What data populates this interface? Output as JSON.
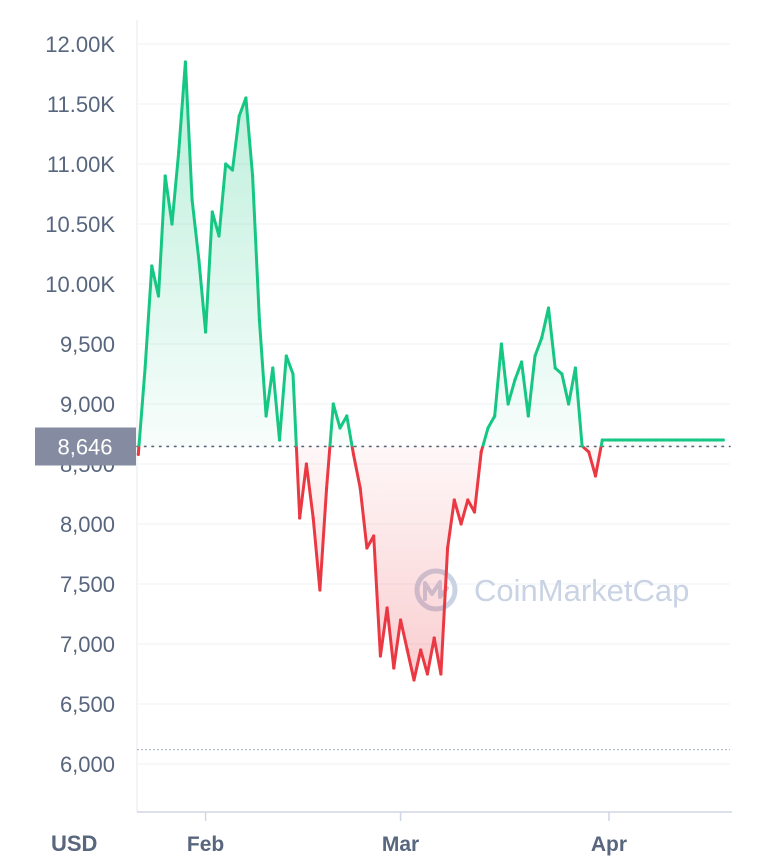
{
  "chart_data": {
    "type": "line",
    "unit_label": "USD",
    "watermark": "CoinMarketCap",
    "reference_price": 8646,
    "reference_label": "8,646",
    "low_marker": 6120,
    "ylim": [
      5600,
      12200
    ],
    "y_ticks": [
      {
        "value": 12000,
        "label": "12.00K"
      },
      {
        "value": 11500,
        "label": "11.50K"
      },
      {
        "value": 11000,
        "label": "11.00K"
      },
      {
        "value": 10500,
        "label": "10.50K"
      },
      {
        "value": 10000,
        "label": "10.00K"
      },
      {
        "value": 9500,
        "label": "9,500"
      },
      {
        "value": 9000,
        "label": "9,000"
      },
      {
        "value": 8500,
        "label": "8,500"
      },
      {
        "value": 8000,
        "label": "8,000"
      },
      {
        "value": 7500,
        "label": "7,500"
      },
      {
        "value": 7000,
        "label": "7,000"
      },
      {
        "value": 6500,
        "label": "6,500"
      },
      {
        "value": 6000,
        "label": "6,000"
      }
    ],
    "x_ticks": [
      {
        "day": 10,
        "label": "Feb"
      },
      {
        "day": 39,
        "label": "Mar"
      },
      {
        "day": 70,
        "label": "Apr"
      }
    ],
    "xlim": [
      -0.2,
      88
    ],
    "colors": {
      "up": "#16c784",
      "down": "#ea3943"
    },
    "x": [
      0,
      1,
      2,
      3,
      4,
      5,
      6,
      7,
      8,
      9,
      10,
      11,
      12,
      13,
      14,
      15,
      16,
      17,
      18,
      19,
      20,
      21,
      22,
      23,
      24,
      25,
      26,
      27,
      28,
      29,
      30,
      31,
      32,
      33,
      34,
      35,
      36,
      37,
      38,
      39,
      40,
      41,
      42,
      43,
      44,
      45,
      46,
      47,
      48,
      49,
      50,
      51,
      52,
      53,
      54,
      55,
      56,
      57,
      58,
      59,
      60,
      61,
      62,
      63,
      64,
      65,
      66,
      67,
      68,
      69,
      70,
      71,
      72,
      73,
      74,
      75,
      76,
      77,
      78,
      79,
      80,
      81,
      82,
      83,
      84,
      85,
      86,
      87
    ],
    "values": [
      8580,
      9300,
      10150,
      9900,
      10900,
      10500,
      11100,
      11850,
      10700,
      10200,
      9600,
      10600,
      10400,
      11000,
      10950,
      11400,
      11550,
      10900,
      9700,
      8900,
      9300,
      8700,
      9400,
      9250,
      8050,
      8500,
      8050,
      7450,
      8300,
      9000,
      8800,
      8900,
      8580,
      8300,
      7800,
      7900,
      6900,
      7300,
      6800,
      7200,
      6950,
      6700,
      6950,
      6750,
      7050,
      6750,
      7800,
      8200,
      8000,
      8200,
      8100,
      8600,
      8800,
      8900,
      9500,
      9000,
      9200,
      9350,
      8900,
      9400,
      9550,
      9800,
      9300,
      9250,
      9000,
      9300,
      8650,
      8600,
      8400,
      8700,
      8700,
      8700,
      8700,
      8700,
      8700,
      8700,
      8700,
      8700,
      8700,
      8700,
      8700,
      8700,
      8700,
      8700,
      8700,
      8700,
      8700,
      8700
    ]
  }
}
